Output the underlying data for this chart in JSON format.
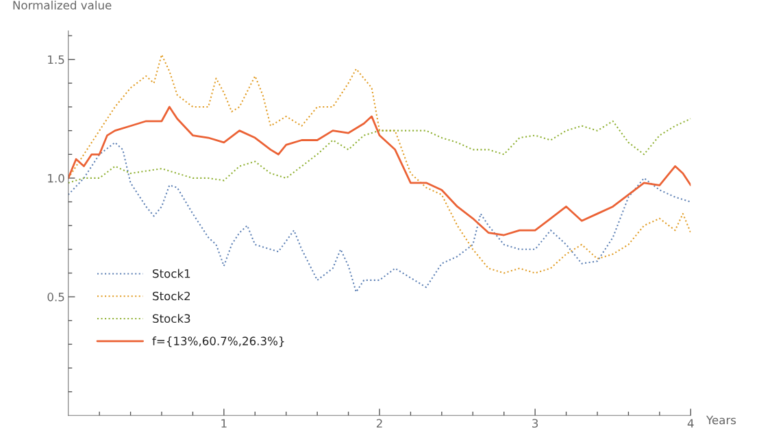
{
  "chart_data": {
    "type": "line",
    "xlabel": "Years",
    "ylabel": "Normalized value",
    "xlim": [
      0,
      4
    ],
    "ylim": [
      0,
      1.62
    ],
    "xticks": [
      {
        "value": 0.2,
        "label": null
      },
      {
        "value": 0.4,
        "label": null
      },
      {
        "value": 0.6,
        "label": null
      },
      {
        "value": 0.8,
        "label": null
      },
      {
        "value": 1,
        "label": "1"
      },
      {
        "value": 1.2,
        "label": null
      },
      {
        "value": 1.4,
        "label": null
      },
      {
        "value": 1.6,
        "label": null
      },
      {
        "value": 1.8,
        "label": null
      },
      {
        "value": 2,
        "label": "2"
      },
      {
        "value": 2.2,
        "label": null
      },
      {
        "value": 2.4,
        "label": null
      },
      {
        "value": 2.6,
        "label": null
      },
      {
        "value": 2.8,
        "label": null
      },
      {
        "value": 3,
        "label": "3"
      },
      {
        "value": 3.2,
        "label": null
      },
      {
        "value": 3.4,
        "label": null
      },
      {
        "value": 3.6,
        "label": null
      },
      {
        "value": 3.8,
        "label": null
      },
      {
        "value": 4,
        "label": "4"
      }
    ],
    "yticks": [
      {
        "value": 0.1,
        "label": null
      },
      {
        "value": 0.2,
        "label": null
      },
      {
        "value": 0.3,
        "label": null
      },
      {
        "value": 0.4,
        "label": null
      },
      {
        "value": 0.5,
        "label": "0.5"
      },
      {
        "value": 0.6,
        "label": null
      },
      {
        "value": 0.7,
        "label": null
      },
      {
        "value": 0.8,
        "label": null
      },
      {
        "value": 0.9,
        "label": null
      },
      {
        "value": 1.0,
        "label": "1.0"
      },
      {
        "value": 1.1,
        "label": null
      },
      {
        "value": 1.2,
        "label": null
      },
      {
        "value": 1.3,
        "label": null
      },
      {
        "value": 1.4,
        "label": null
      },
      {
        "value": 1.5,
        "label": "1.5"
      },
      {
        "value": 1.6,
        "label": null
      }
    ],
    "grid": false,
    "legend": "bottom left",
    "series": [
      {
        "name": "Stock1",
        "color": "#5e81b5",
        "line_style": "dotted",
        "x": [
          0,
          0.1,
          0.2,
          0.3,
          0.35,
          0.4,
          0.5,
          0.55,
          0.6,
          0.65,
          0.7,
          0.8,
          0.9,
          0.95,
          1.0,
          1.05,
          1.1,
          1.15,
          1.2,
          1.3,
          1.35,
          1.45,
          1.5,
          1.6,
          1.7,
          1.75,
          1.8,
          1.85,
          1.9,
          2.0,
          2.1,
          2.2,
          2.3,
          2.4,
          2.5,
          2.6,
          2.65,
          2.7,
          2.8,
          2.9,
          3.0,
          3.1,
          3.2,
          3.3,
          3.4,
          3.5,
          3.6,
          3.7,
          3.8,
          3.9,
          4.0
        ],
        "values": [
          0.93,
          1.0,
          1.1,
          1.15,
          1.12,
          0.98,
          0.88,
          0.84,
          0.88,
          0.97,
          0.96,
          0.85,
          0.75,
          0.72,
          0.63,
          0.72,
          0.77,
          0.8,
          0.72,
          0.7,
          0.69,
          0.78,
          0.7,
          0.57,
          0.62,
          0.7,
          0.63,
          0.52,
          0.57,
          0.57,
          0.62,
          0.58,
          0.54,
          0.64,
          0.67,
          0.72,
          0.85,
          0.8,
          0.72,
          0.7,
          0.7,
          0.78,
          0.72,
          0.64,
          0.65,
          0.75,
          0.92,
          1.0,
          0.95,
          0.92,
          0.9
        ]
      },
      {
        "name": "Stock2",
        "color": "#e19c24",
        "line_style": "dotted",
        "x": [
          0,
          0.1,
          0.2,
          0.3,
          0.4,
          0.5,
          0.55,
          0.6,
          0.65,
          0.7,
          0.8,
          0.9,
          0.95,
          1.0,
          1.05,
          1.1,
          1.2,
          1.25,
          1.3,
          1.4,
          1.5,
          1.6,
          1.7,
          1.8,
          1.85,
          1.9,
          1.95,
          2.0,
          2.1,
          2.2,
          2.3,
          2.4,
          2.5,
          2.6,
          2.7,
          2.8,
          2.9,
          3.0,
          3.1,
          3.2,
          3.3,
          3.4,
          3.5,
          3.6,
          3.7,
          3.8,
          3.9,
          3.95,
          4.0
        ],
        "values": [
          1.0,
          1.1,
          1.2,
          1.3,
          1.38,
          1.43,
          1.4,
          1.52,
          1.45,
          1.35,
          1.3,
          1.3,
          1.42,
          1.36,
          1.28,
          1.3,
          1.43,
          1.35,
          1.22,
          1.26,
          1.22,
          1.3,
          1.3,
          1.4,
          1.46,
          1.42,
          1.38,
          1.2,
          1.2,
          1.02,
          0.96,
          0.93,
          0.8,
          0.7,
          0.62,
          0.6,
          0.62,
          0.6,
          0.62,
          0.68,
          0.72,
          0.66,
          0.68,
          0.72,
          0.8,
          0.83,
          0.78,
          0.85,
          0.77
        ]
      },
      {
        "name": "Stock3",
        "color": "#8fb032",
        "line_style": "dotted",
        "x": [
          0,
          0.1,
          0.2,
          0.3,
          0.4,
          0.5,
          0.6,
          0.7,
          0.8,
          0.9,
          1.0,
          1.1,
          1.2,
          1.3,
          1.4,
          1.5,
          1.6,
          1.7,
          1.8,
          1.9,
          2.0,
          2.1,
          2.2,
          2.3,
          2.4,
          2.5,
          2.6,
          2.7,
          2.8,
          2.9,
          3.0,
          3.1,
          3.2,
          3.3,
          3.4,
          3.5,
          3.6,
          3.7,
          3.8,
          3.9,
          4.0
        ],
        "values": [
          0.98,
          1.0,
          1.0,
          1.05,
          1.02,
          1.03,
          1.04,
          1.02,
          1.0,
          1.0,
          0.99,
          1.05,
          1.07,
          1.02,
          1.0,
          1.05,
          1.1,
          1.16,
          1.12,
          1.18,
          1.2,
          1.2,
          1.2,
          1.2,
          1.17,
          1.15,
          1.12,
          1.12,
          1.1,
          1.17,
          1.18,
          1.16,
          1.2,
          1.22,
          1.2,
          1.24,
          1.15,
          1.1,
          1.18,
          1.22,
          1.25
        ]
      },
      {
        "name": "f={13%,60.7%,26.3%}",
        "color": "#eb6235",
        "line_style": "solid",
        "x": [
          0,
          0.05,
          0.1,
          0.15,
          0.2,
          0.25,
          0.3,
          0.4,
          0.5,
          0.6,
          0.65,
          0.7,
          0.8,
          0.9,
          1.0,
          1.1,
          1.2,
          1.3,
          1.35,
          1.4,
          1.5,
          1.6,
          1.7,
          1.8,
          1.9,
          1.95,
          2.0,
          2.1,
          2.2,
          2.3,
          2.4,
          2.5,
          2.6,
          2.7,
          2.8,
          2.9,
          3.0,
          3.1,
          3.2,
          3.3,
          3.4,
          3.5,
          3.6,
          3.7,
          3.8,
          3.9,
          3.95,
          4.0
        ],
        "values": [
          1.0,
          1.08,
          1.05,
          1.1,
          1.1,
          1.18,
          1.2,
          1.22,
          1.24,
          1.24,
          1.3,
          1.25,
          1.18,
          1.17,
          1.15,
          1.2,
          1.17,
          1.12,
          1.1,
          1.14,
          1.16,
          1.16,
          1.2,
          1.19,
          1.23,
          1.26,
          1.18,
          1.12,
          0.98,
          0.98,
          0.95,
          0.88,
          0.83,
          0.77,
          0.76,
          0.78,
          0.78,
          0.83,
          0.88,
          0.82,
          0.85,
          0.88,
          0.93,
          0.98,
          0.97,
          1.05,
          1.02,
          0.97
        ]
      }
    ]
  }
}
